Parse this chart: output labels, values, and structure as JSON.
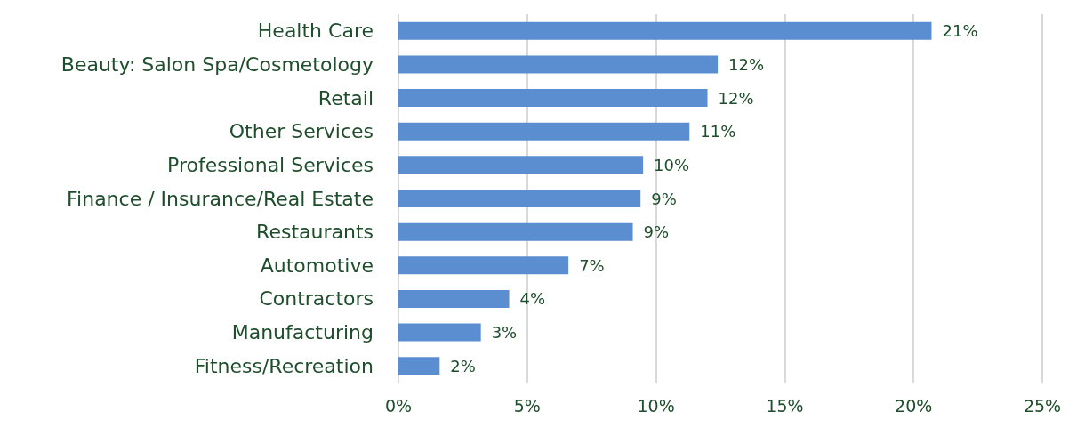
{
  "chart_data": {
    "type": "bar",
    "orientation": "horizontal",
    "categories": [
      "Health Care",
      "Beauty: Salon Spa/Cosmetology",
      "Retail",
      "Other Services",
      "Professional Services",
      "Finance / Insurance/Real Estate",
      "Restaurants",
      "Automotive",
      "Contractors",
      "Manufacturing",
      "Fitness/Recreation"
    ],
    "values": [
      20.7,
      12.4,
      12.0,
      11.3,
      9.5,
      9.4,
      9.1,
      6.6,
      4.3,
      3.2,
      1.6
    ],
    "value_labels": [
      "21%",
      "12%",
      "12%",
      "11%",
      "10%",
      "9%",
      "9%",
      "7%",
      "4%",
      "3%",
      "2%"
    ],
    "color": "#5b8ed0",
    "xlim": [
      0,
      25
    ],
    "xticks": [
      {
        "value": 0,
        "label": "0%"
      },
      {
        "value": 5,
        "label": "5%"
      },
      {
        "value": 10,
        "label": "10%"
      },
      {
        "value": 15,
        "label": "15%"
      },
      {
        "value": 20,
        "label": "20%"
      },
      {
        "value": 25,
        "label": "25%"
      }
    ],
    "grid": "x"
  }
}
